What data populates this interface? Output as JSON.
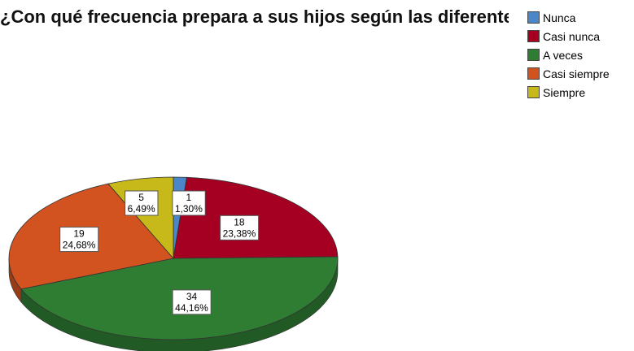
{
  "title": "¿Con qué frecuencia prepara a sus hijos según las diferentes categorías del sistema de pensamiento?",
  "chart_data": {
    "type": "pie",
    "title": "¿Con qué frecuencia prepara a sus hijos según las diferentes categorías del sistema de pensamiento?",
    "legend_position": "top-right",
    "slices": [
      {
        "label": "Nunca",
        "count": 1,
        "percent_label": "1,30%",
        "value": 1.3,
        "color": "#4a86c8"
      },
      {
        "label": "Casi nunca",
        "count": 18,
        "percent_label": "23,38%",
        "value": 23.38,
        "color": "#a50021"
      },
      {
        "label": "A veces",
        "count": 34,
        "percent_label": "44,16%",
        "value": 44.16,
        "color": "#2e7d32"
      },
      {
        "label": "Casi siempre",
        "count": 19,
        "percent_label": "24,68%",
        "value": 24.68,
        "color": "#d2531f"
      },
      {
        "label": "Siempre",
        "count": 5,
        "percent_label": "6,49%",
        "value": 6.49,
        "color": "#c8b91a"
      }
    ]
  }
}
